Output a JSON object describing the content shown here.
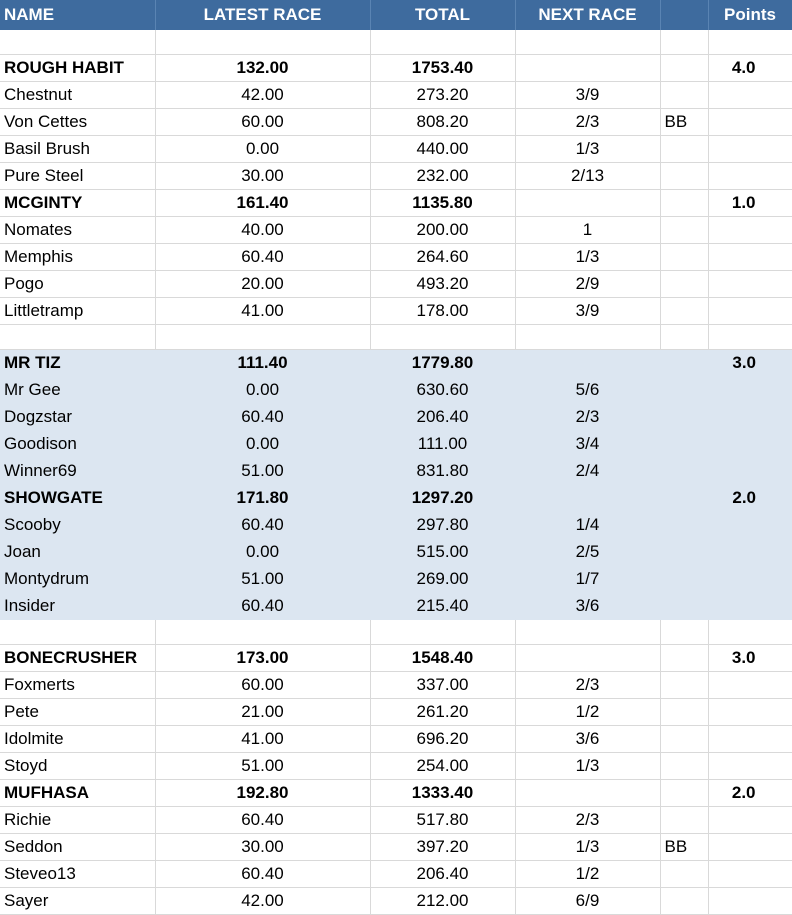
{
  "headers": {
    "name": "NAME",
    "latest": "LATEST RACE",
    "total": "TOTAL",
    "next": "NEXT RACE",
    "extra": "",
    "points": "Points"
  },
  "rows": [
    {
      "kind": "blank",
      "band": false
    },
    {
      "kind": "team",
      "band": false,
      "name": "ROUGH HABIT",
      "latest": "132.00",
      "total": "1753.40",
      "next": "",
      "extra": "",
      "points": "4.0"
    },
    {
      "kind": "player",
      "band": false,
      "name": "Chestnut",
      "latest": "42.00",
      "total": "273.20",
      "next": "3/9",
      "extra": "",
      "points": ""
    },
    {
      "kind": "player",
      "band": false,
      "name": "Von Cettes",
      "latest": "60.00",
      "total": "808.20",
      "next": "2/3",
      "extra": "BB",
      "points": ""
    },
    {
      "kind": "player",
      "band": false,
      "name": "Basil Brush",
      "latest": "0.00",
      "total": "440.00",
      "next": "1/3",
      "extra": "",
      "points": ""
    },
    {
      "kind": "player",
      "band": false,
      "name": "Pure Steel",
      "latest": "30.00",
      "total": "232.00",
      "next": "2/13",
      "extra": "",
      "points": ""
    },
    {
      "kind": "team",
      "band": false,
      "name": "MCGINTY",
      "latest": "161.40",
      "total": "1135.80",
      "next": "",
      "extra": "",
      "points": "1.0"
    },
    {
      "kind": "player",
      "band": false,
      "name": "Nomates",
      "latest": "40.00",
      "total": "200.00",
      "next": "1",
      "extra": "",
      "points": ""
    },
    {
      "kind": "player",
      "band": false,
      "name": "Memphis",
      "latest": "60.40",
      "total": "264.60",
      "next": "1/3",
      "extra": "",
      "points": ""
    },
    {
      "kind": "player",
      "band": false,
      "name": "Pogo",
      "latest": "20.00",
      "total": "493.20",
      "next": "2/9",
      "extra": "",
      "points": ""
    },
    {
      "kind": "player",
      "band": false,
      "name": "Littletramp",
      "latest": "41.00",
      "total": "178.00",
      "next": "3/9",
      "extra": "",
      "points": ""
    },
    {
      "kind": "blank",
      "band": false
    },
    {
      "kind": "team",
      "band": true,
      "name": "MR TIZ",
      "latest": "111.40",
      "total": "1779.80",
      "next": "",
      "extra": "",
      "points": "3.0"
    },
    {
      "kind": "player",
      "band": true,
      "name": "Mr Gee",
      "latest": "0.00",
      "total": "630.60",
      "next": "5/6",
      "extra": "",
      "points": ""
    },
    {
      "kind": "player",
      "band": true,
      "name": "Dogzstar",
      "latest": "60.40",
      "total": "206.40",
      "next": "2/3",
      "extra": "",
      "points": ""
    },
    {
      "kind": "player",
      "band": true,
      "name": "Goodison",
      "latest": "0.00",
      "total": "111.00",
      "next": "3/4",
      "extra": "",
      "points": ""
    },
    {
      "kind": "player",
      "band": true,
      "name": "Winner69",
      "latest": "51.00",
      "total": "831.80",
      "next": "2/4",
      "extra": "",
      "points": ""
    },
    {
      "kind": "team",
      "band": true,
      "name": "SHOWGATE",
      "latest": "171.80",
      "total": "1297.20",
      "next": "",
      "extra": "",
      "points": "2.0"
    },
    {
      "kind": "player",
      "band": true,
      "name": "Scooby",
      "latest": "60.40",
      "total": "297.80",
      "next": "1/4",
      "extra": "",
      "points": ""
    },
    {
      "kind": "player",
      "band": true,
      "name": "Joan",
      "latest": "0.00",
      "total": "515.00",
      "next": "2/5",
      "extra": "",
      "points": ""
    },
    {
      "kind": "player",
      "band": true,
      "name": "Montydrum",
      "latest": "51.00",
      "total": "269.00",
      "next": "1/7",
      "extra": "",
      "points": ""
    },
    {
      "kind": "player",
      "band": true,
      "name": "Insider",
      "latest": "60.40",
      "total": "215.40",
      "next": "3/6",
      "extra": "",
      "points": ""
    },
    {
      "kind": "blank",
      "band": false
    },
    {
      "kind": "team",
      "band": false,
      "name": "BONECRUSHER",
      "latest": "173.00",
      "total": "1548.40",
      "next": "",
      "extra": "",
      "points": "3.0"
    },
    {
      "kind": "player",
      "band": false,
      "name": "Foxmerts",
      "latest": "60.00",
      "total": "337.00",
      "next": "2/3",
      "extra": "",
      "points": ""
    },
    {
      "kind": "player",
      "band": false,
      "name": "Pete",
      "latest": "21.00",
      "total": "261.20",
      "next": "1/2",
      "extra": "",
      "points": ""
    },
    {
      "kind": "player",
      "band": false,
      "name": "Idolmite",
      "latest": "41.00",
      "total": "696.20",
      "next": "3/6",
      "extra": "",
      "points": ""
    },
    {
      "kind": "player",
      "band": false,
      "name": "Stoyd",
      "latest": "51.00",
      "total": "254.00",
      "next": "1/3",
      "extra": "",
      "points": ""
    },
    {
      "kind": "team",
      "band": false,
      "name": "MUFHASA",
      "latest": "192.80",
      "total": "1333.40",
      "next": "",
      "extra": "",
      "points": "2.0"
    },
    {
      "kind": "player",
      "band": false,
      "name": "Richie",
      "latest": "60.40",
      "total": "517.80",
      "next": "2/3",
      "extra": "",
      "points": ""
    },
    {
      "kind": "player",
      "band": false,
      "name": "Seddon",
      "latest": "30.00",
      "total": "397.20",
      "next": "1/3",
      "extra": "BB",
      "points": ""
    },
    {
      "kind": "player",
      "band": false,
      "name": "Steveo13",
      "latest": "60.40",
      "total": "206.40",
      "next": "1/2",
      "extra": "",
      "points": ""
    },
    {
      "kind": "player",
      "band": false,
      "name": "Sayer",
      "latest": "42.00",
      "total": "212.00",
      "next": "6/9",
      "extra": "",
      "points": ""
    }
  ]
}
